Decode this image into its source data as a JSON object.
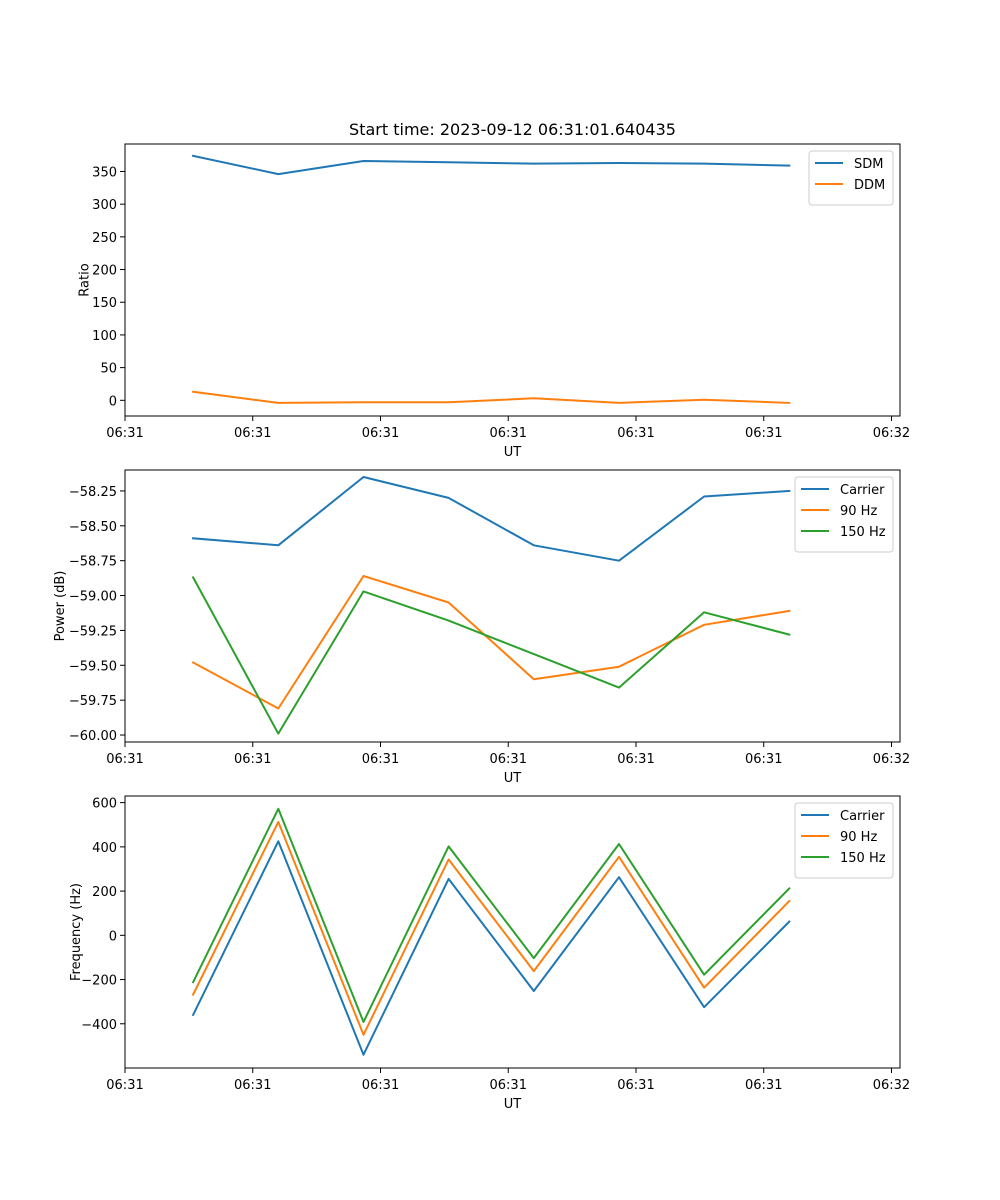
{
  "chart_data": [
    {
      "type": "line",
      "title": "Start time: 2023-09-12 06:31:01.640435",
      "xlabel": "UT",
      "ylabel": "Ratio",
      "x": [
        1,
        2,
        3,
        4,
        5,
        6,
        7,
        8
      ],
      "xlim": [
        0.2,
        9.3
      ],
      "x_ticks": [
        0.2,
        1.7,
        3.2,
        4.7,
        6.2,
        7.7,
        9.2
      ],
      "x_tick_labels": [
        "06:31",
        "06:31",
        "06:31",
        "06:31",
        "06:31",
        "06:31",
        "06:32"
      ],
      "ylim": [
        -24,
        392
      ],
      "y_ticks": [
        0,
        50,
        100,
        150,
        200,
        250,
        300,
        350
      ],
      "y_tick_labels": [
        "0",
        "50",
        "100",
        "150",
        "200",
        "250",
        "300",
        "350"
      ],
      "legend_position": "top-right",
      "series": [
        {
          "name": "SDM",
          "color": "#1f77b4",
          "values": [
            374,
            346,
            366,
            364,
            362,
            363,
            362,
            359
          ]
        },
        {
          "name": "DDM",
          "color": "#ff7f0e",
          "values": [
            13,
            -4,
            -3,
            -3,
            3,
            -4,
            1,
            -4
          ]
        }
      ]
    },
    {
      "type": "line",
      "title": "",
      "xlabel": "UT",
      "ylabel": "Power (dB)",
      "x": [
        1,
        2,
        3,
        4,
        5,
        6,
        7,
        8
      ],
      "xlim": [
        0.2,
        9.3
      ],
      "x_ticks": [
        0.2,
        1.7,
        3.2,
        4.7,
        6.2,
        7.7,
        9.2
      ],
      "x_tick_labels": [
        "06:31",
        "06:31",
        "06:31",
        "06:31",
        "06:31",
        "06:31",
        "06:32"
      ],
      "ylim": [
        -60.05,
        -58.1
      ],
      "y_ticks": [
        -60.0,
        -59.75,
        -59.5,
        -59.25,
        -59.0,
        -58.75,
        -58.5,
        -58.25
      ],
      "y_tick_labels": [
        "−60.00",
        "−59.75",
        "−59.50",
        "−59.25",
        "−59.00",
        "−58.75",
        "−58.50",
        "−58.25"
      ],
      "legend_position": "top-right",
      "series": [
        {
          "name": "Carrier",
          "color": "#1f77b4",
          "values": [
            -58.59,
            -58.64,
            -58.15,
            -58.3,
            -58.64,
            -58.75,
            -58.29,
            -58.25
          ]
        },
        {
          "name": "90 Hz",
          "color": "#ff7f0e",
          "values": [
            -59.48,
            -59.81,
            -58.86,
            -59.05,
            -59.6,
            -59.51,
            -59.21,
            -59.11
          ]
        },
        {
          "name": "150 Hz",
          "color": "#2ca02c",
          "values": [
            -58.87,
            -59.99,
            -58.97,
            -59.18,
            -59.42,
            -59.66,
            -59.12,
            -59.28
          ]
        }
      ]
    },
    {
      "type": "line",
      "title": "",
      "xlabel": "UT",
      "ylabel": "Frequency (Hz)",
      "x": [
        1,
        2,
        3,
        4,
        5,
        6,
        7,
        8
      ],
      "xlim": [
        0.2,
        9.3
      ],
      "x_ticks": [
        0.2,
        1.7,
        3.2,
        4.7,
        6.2,
        7.7,
        9.2
      ],
      "x_tick_labels": [
        "06:31",
        "06:31",
        "06:31",
        "06:31",
        "06:31",
        "06:31",
        "06:32"
      ],
      "ylim": [
        -600,
        630
      ],
      "y_ticks": [
        -400,
        -200,
        0,
        200,
        400,
        600
      ],
      "y_tick_labels": [
        "−400",
        "−200",
        "0",
        "200",
        "400",
        "600"
      ],
      "legend_position": "top-right",
      "series": [
        {
          "name": "Carrier",
          "color": "#1f77b4",
          "values": [
            -360,
            425,
            -540,
            255,
            -252,
            263,
            -325,
            62
          ]
        },
        {
          "name": "90 Hz",
          "color": "#ff7f0e",
          "values": [
            -268,
            513,
            -450,
            343,
            -162,
            355,
            -237,
            155
          ]
        },
        {
          "name": "150 Hz",
          "color": "#2ca02c",
          "values": [
            -212,
            572,
            -392,
            402,
            -103,
            413,
            -178,
            212
          ]
        }
      ]
    }
  ]
}
